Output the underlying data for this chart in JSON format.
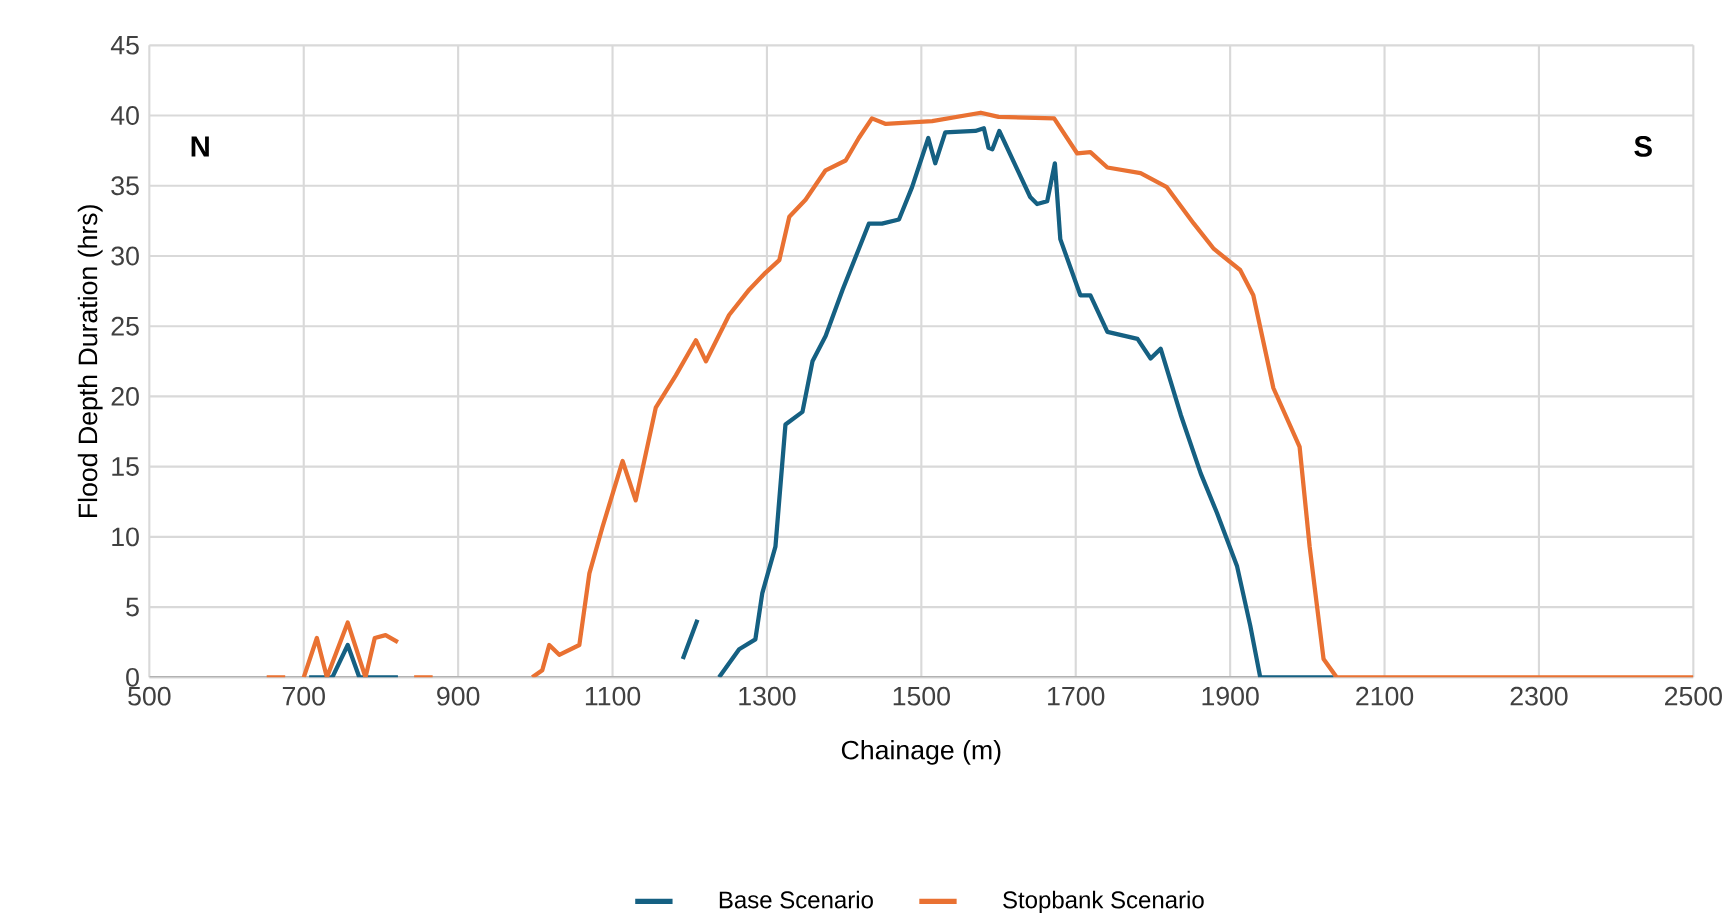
{
  "chart_data": {
    "type": "line",
    "xlabel": "Chainage (m)",
    "ylabel": "Flood Depth Duration (hrs)",
    "annotations": [
      "N",
      "S"
    ],
    "xlim": [
      500,
      2500
    ],
    "xticks": [
      500,
      700,
      900,
      1100,
      1300,
      1500,
      1700,
      1900,
      2100,
      2300,
      2500
    ],
    "ylim": [
      0,
      45
    ],
    "yticks": [
      0,
      5,
      10,
      15,
      20,
      25,
      30,
      35,
      40,
      45
    ],
    "grid": true,
    "legend": "bottom",
    "series": [
      {
        "name": "Base Scenario",
        "color": "#156082",
        "x": [
          707,
          737,
          757,
          772,
          822,
          1000,
          1191,
          1210,
          1225,
          1238,
          1264,
          1285,
          1294,
          1311,
          1324,
          1346,
          1359,
          1376,
          1398,
          1419,
          1432,
          1449,
          1471,
          1488,
          1509,
          1518,
          1531,
          1570,
          1581,
          1587,
          1592,
          1601,
          1641,
          1650,
          1663,
          1673,
          1680,
          1706,
          1719,
          1741,
          1780,
          1797,
          1810,
          1836,
          1862,
          1883,
          1909,
          1926,
          1939,
          2034
        ],
        "values": [
          0,
          0,
          2.3,
          0,
          0,
          null,
          1.3,
          4.1,
          null,
          0,
          2.0,
          2.7,
          6.0,
          9.3,
          18.0,
          18.9,
          22.5,
          24.3,
          27.6,
          30.5,
          32.3,
          32.3,
          32.6,
          34.9,
          38.4,
          36.6,
          38.8,
          38.9,
          39.1,
          37.7,
          37.6,
          38.9,
          34.2,
          33.7,
          33.9,
          36.6,
          31.2,
          27.2,
          27.2,
          24.6,
          24.1,
          22.7,
          23.4,
          18.7,
          14.5,
          11.7,
          7.9,
          3.7,
          0,
          0
        ]
      },
      {
        "name": "Stopbank Scenario",
        "color": "#e97132",
        "x": [
          652,
          676,
          685,
          700,
          717,
          730,
          757,
          780,
          792,
          806,
          822,
          835,
          843,
          867,
          930,
          996,
          1009,
          1018,
          1031,
          1057,
          1070,
          1087,
          1113,
          1130,
          1156,
          1182,
          1208,
          1221,
          1251,
          1277,
          1298,
          1316,
          1329,
          1350,
          1376,
          1402,
          1419,
          1436,
          1454,
          1514,
          1577,
          1600,
          1672,
          1702,
          1719,
          1741,
          1784,
          1818,
          1853,
          1879,
          1913,
          1930,
          1956,
          1990,
          2003,
          2021,
          2038,
          2500
        ],
        "values": [
          0,
          0,
          null,
          0,
          2.8,
          0,
          3.9,
          0,
          2.8,
          3.0,
          2.5,
          null,
          0,
          0,
          null,
          0,
          0.5,
          2.3,
          1.6,
          2.3,
          7.4,
          10.7,
          15.4,
          12.6,
          19.2,
          21.5,
          24.0,
          22.5,
          25.8,
          27.6,
          28.8,
          29.7,
          32.8,
          34.0,
          36.1,
          36.8,
          38.4,
          39.8,
          39.4,
          39.6,
          40.2,
          39.9,
          39.8,
          37.3,
          37.4,
          36.3,
          35.9,
          34.9,
          32.3,
          30.5,
          29.0,
          27.2,
          20.6,
          16.4,
          9.3,
          1.3,
          0,
          0
        ]
      }
    ]
  }
}
